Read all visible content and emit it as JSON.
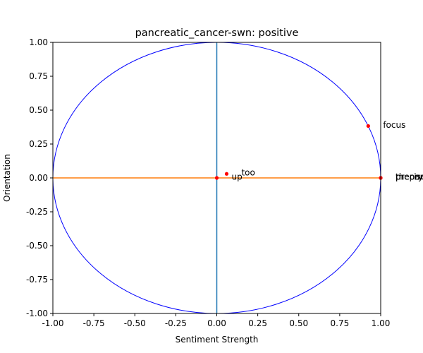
{
  "chart_data": {
    "type": "scatter",
    "title": "pancreatic_cancer-swn: positive",
    "xlabel": "Sentiment Strength",
    "ylabel": "Orientation",
    "xlim": [
      -1.0,
      1.0
    ],
    "ylim": [
      -1.0,
      1.0
    ],
    "xticks": [
      "-1.00",
      "-0.75",
      "-0.50",
      "-0.25",
      "0.00",
      "0.25",
      "0.50",
      "0.75",
      "1.00"
    ],
    "yticks": [
      "-1.00",
      "-0.75",
      "-0.50",
      "-0.25",
      "0.00",
      "0.25",
      "0.50",
      "0.75",
      "1.00"
    ],
    "grid": false,
    "reference_circle": {
      "radius": 1.0,
      "color": "#0000ff"
    },
    "vertical_axis_line": {
      "x": 0.0,
      "color": "#1f77b4"
    },
    "horizontal_axis_line": {
      "y": 0.0,
      "color": "#ff7f0e"
    },
    "point_color": "#ff0000",
    "points": [
      {
        "label": "focus",
        "x": 0.924,
        "y": 0.383
      },
      {
        "label": "too",
        "x": 0.06,
        "y": 0.03
      },
      {
        "label": "up",
        "x": 0.0,
        "y": 0.0
      },
      {
        "label": "theory",
        "x": 1.0,
        "y": 0.0
      },
      {
        "label": "precise",
        "x": 1.0,
        "y": 0.0
      },
      {
        "label": "prepare",
        "x": 1.0,
        "y": 0.0
      }
    ]
  }
}
